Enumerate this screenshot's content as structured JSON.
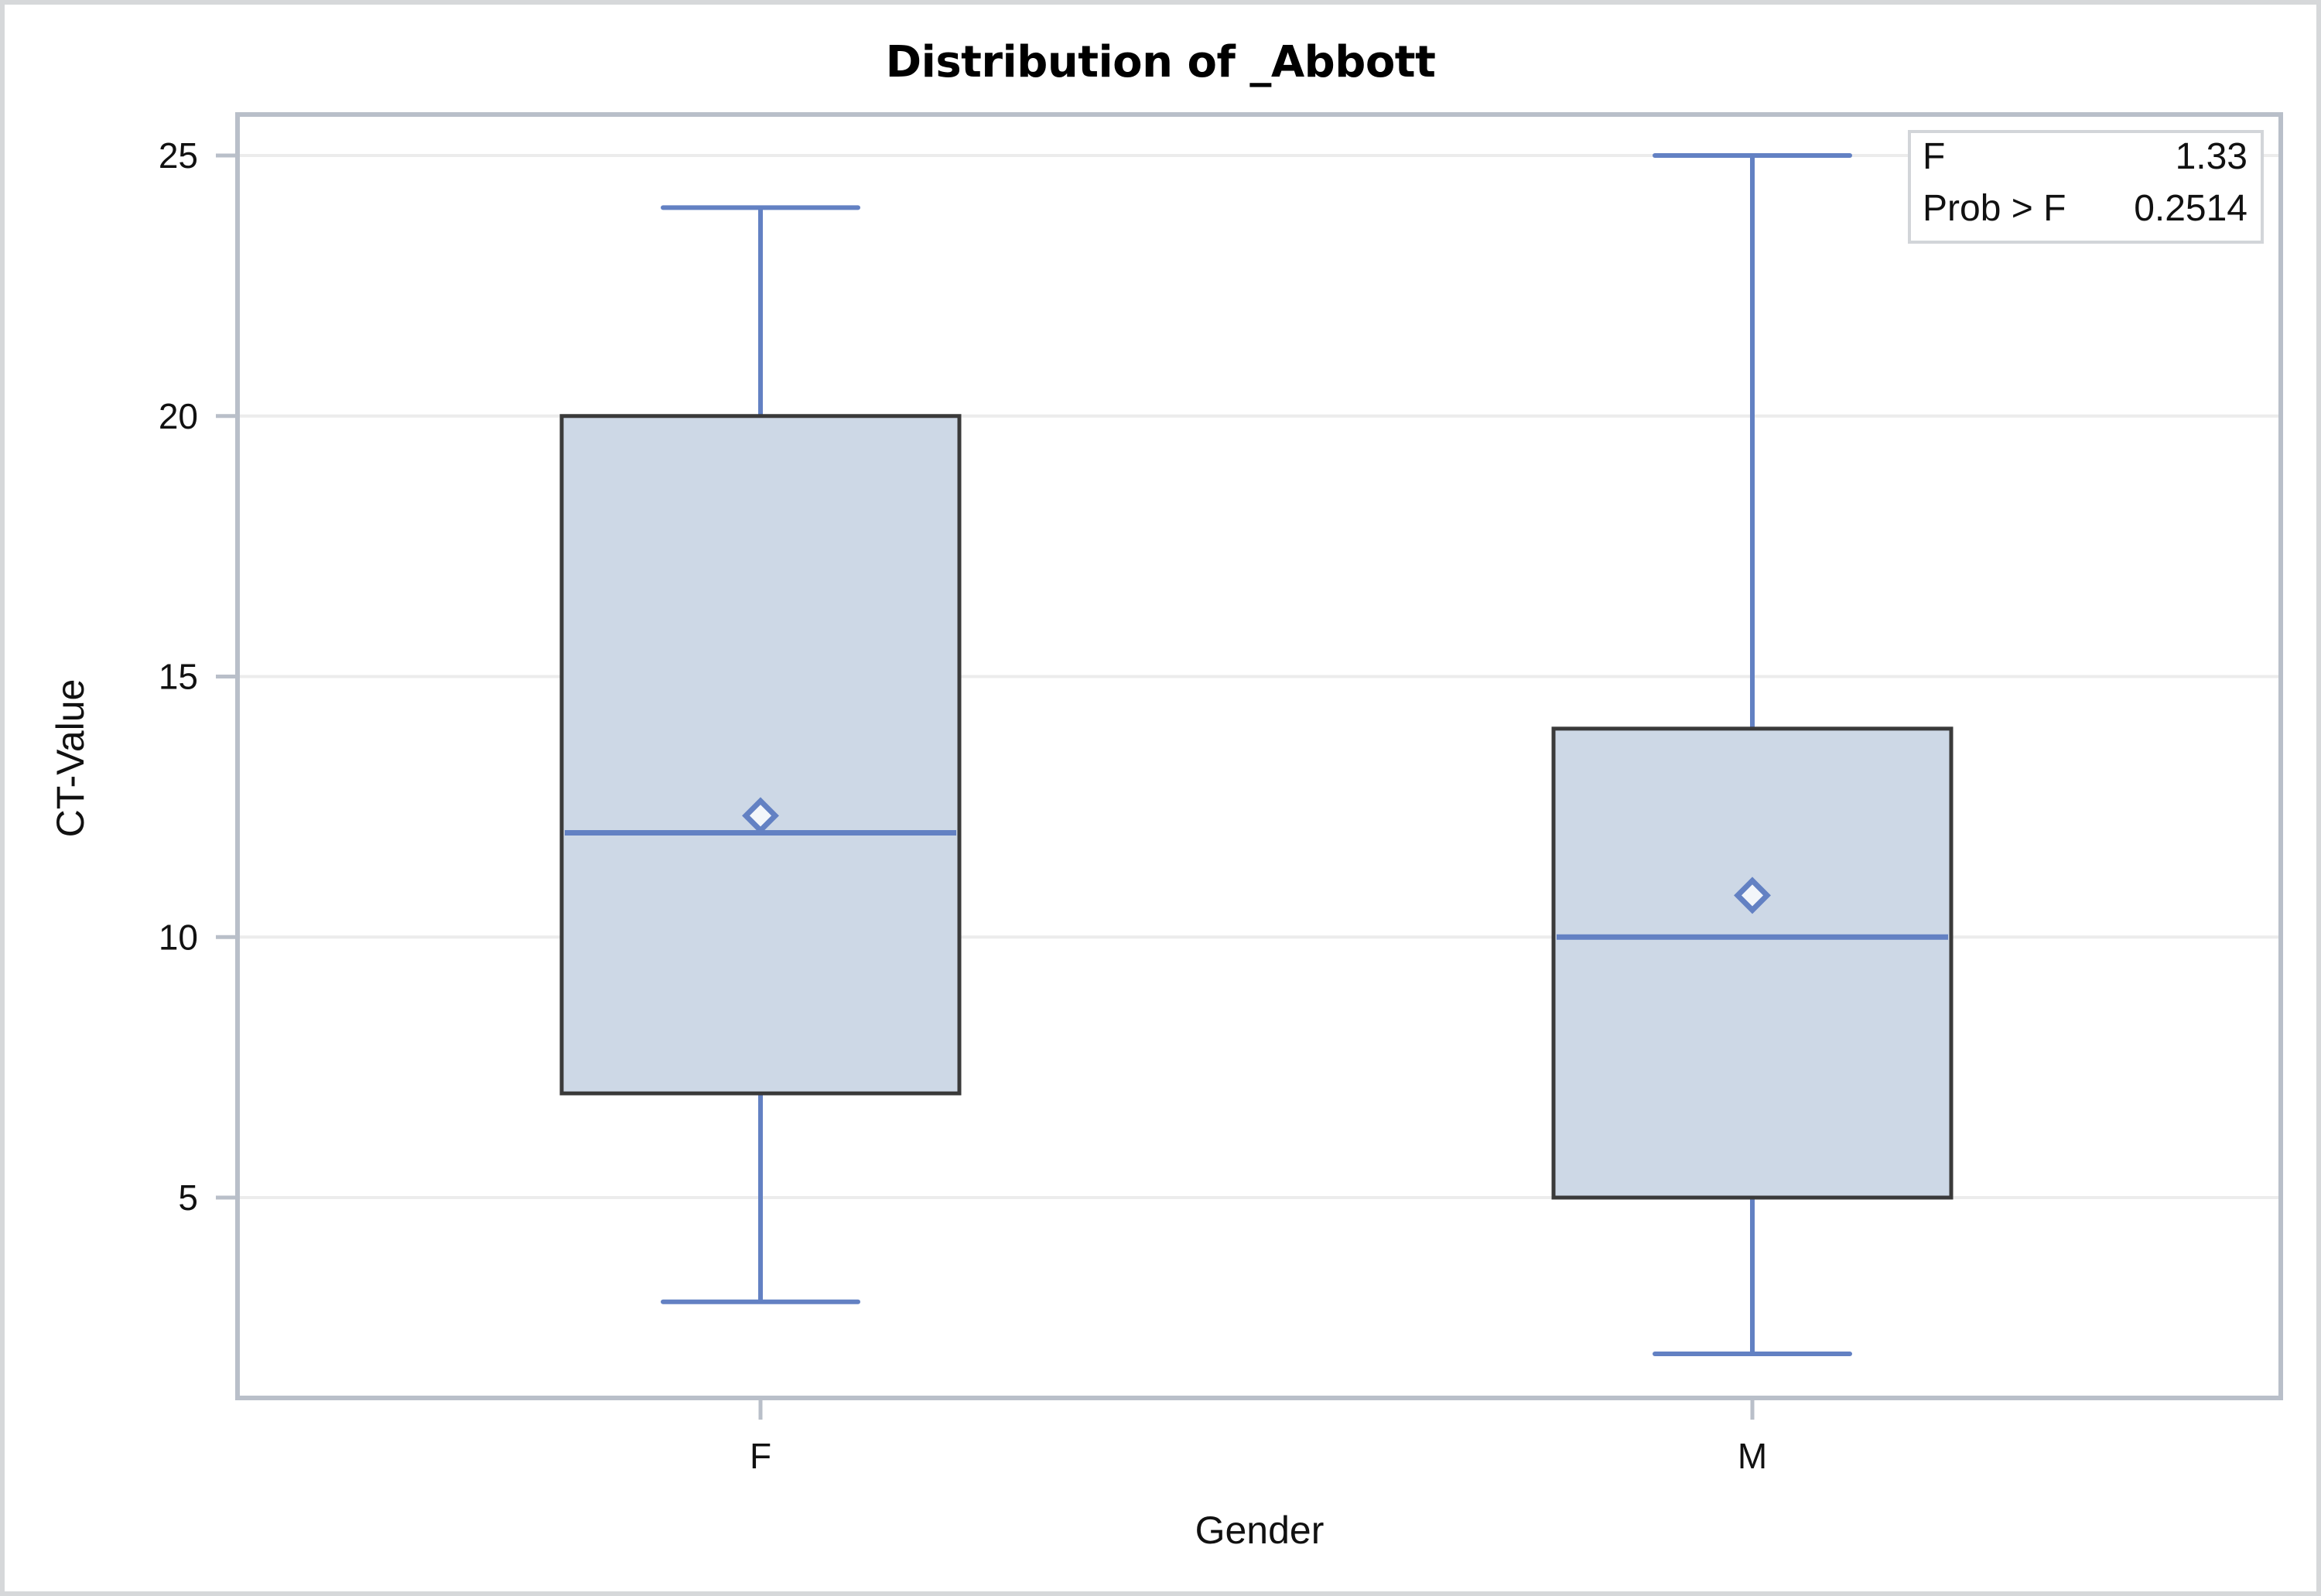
{
  "title": "Distribution of _Abbott",
  "colors": {
    "box_fill": "#cdd8e6",
    "box_stroke": "#3a3a3a",
    "whisker": "#6381c3",
    "grid": "#ececec",
    "frame": "#b9bfc9"
  },
  "stats_inset": {
    "rows": [
      {
        "label": "F",
        "value": "1.33"
      },
      {
        "label": "Prob > F",
        "value": "0.2514"
      }
    ]
  },
  "chart_data": {
    "type": "box",
    "title": "Distribution of _Abbott",
    "xlabel": "Gender",
    "ylabel": "CT-Value",
    "categories": [
      "F",
      "M"
    ],
    "yticks": [
      5,
      10,
      15,
      20,
      25
    ],
    "ylim": [
      1.2,
      25.8
    ],
    "grid": "horizontal",
    "series": [
      {
        "name": "F",
        "min": 3,
        "q1": 7,
        "median": 12,
        "q3": 20,
        "max": 24,
        "mean": 12.33
      },
      {
        "name": "M",
        "min": 2,
        "q1": 5,
        "median": 10,
        "q3": 14,
        "max": 25,
        "mean": 10.8
      }
    ],
    "annotations": [
      {
        "label": "F",
        "value": 1.33
      },
      {
        "label": "Prob > F",
        "value": 0.2514
      }
    ]
  }
}
